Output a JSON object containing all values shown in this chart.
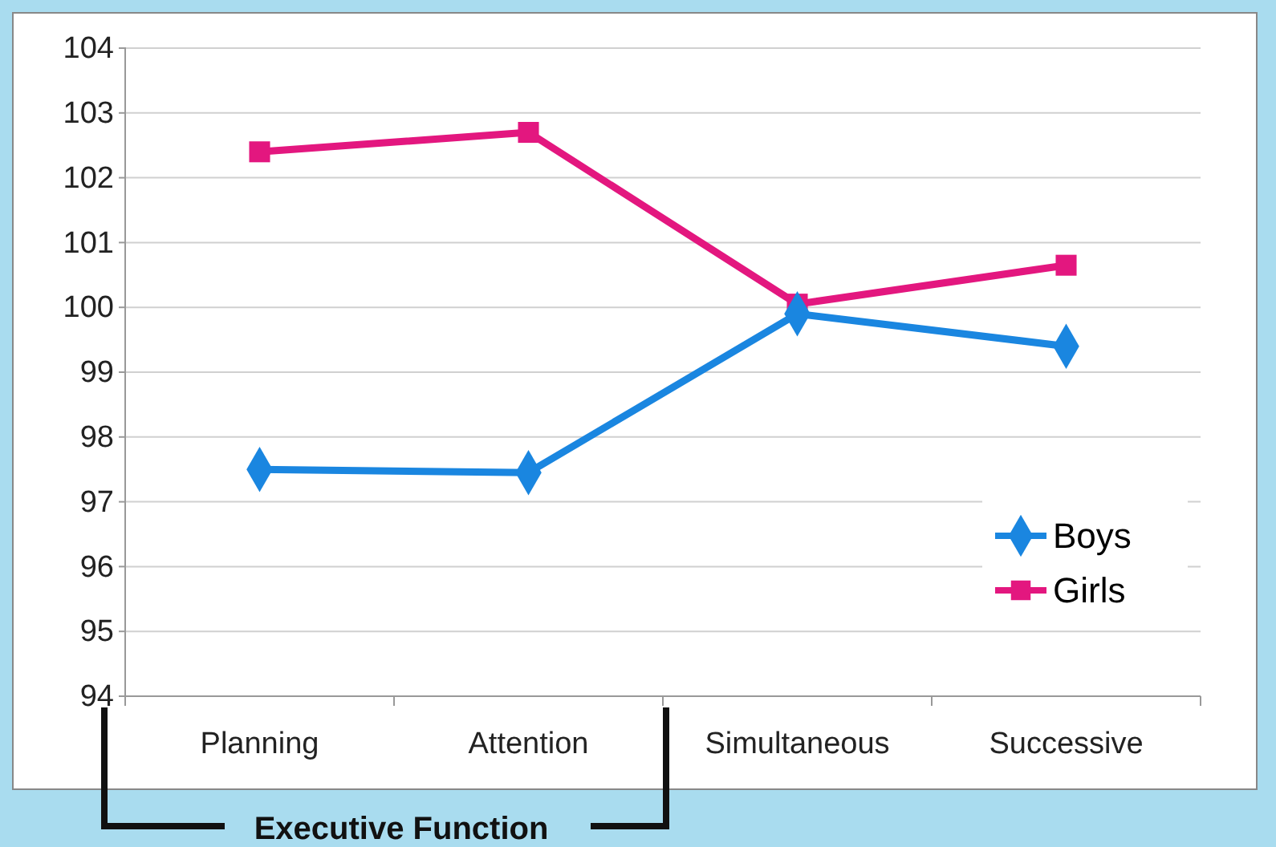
{
  "chart_data": {
    "type": "line",
    "categories": [
      "Planning",
      "Attention",
      "Simultaneous",
      "Successive"
    ],
    "series": [
      {
        "name": "Boys",
        "color": "#1a86e0",
        "marker": "diamond",
        "values": [
          97.5,
          97.45,
          99.9,
          99.4
        ]
      },
      {
        "name": "Girls",
        "color": "#e3177f",
        "marker": "square",
        "values": [
          102.4,
          102.7,
          100.05,
          100.65
        ]
      }
    ],
    "ylim": [
      94,
      104
    ],
    "yticks": [
      94,
      95,
      96,
      97,
      98,
      99,
      100,
      101,
      102,
      103,
      104
    ],
    "grid": "y",
    "legend": "bottom right",
    "annotations": [
      "Executive Function"
    ]
  }
}
